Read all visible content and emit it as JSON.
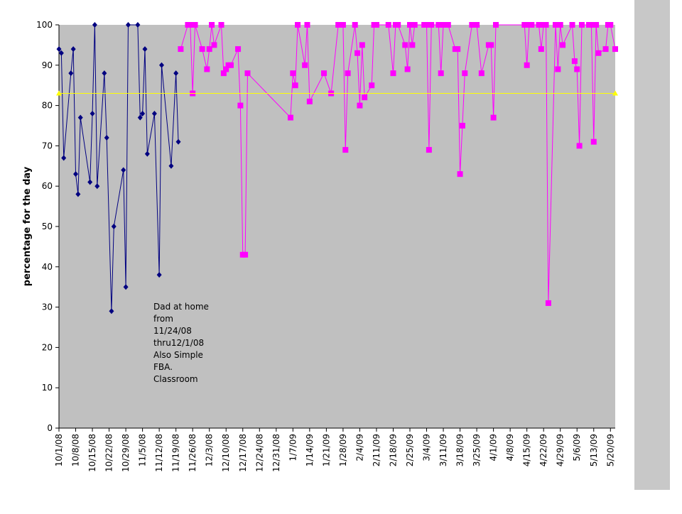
{
  "chart_data": {
    "type": "line",
    "y_label": "percentage for the day",
    "annotation": [
      "Dad at home",
      "from",
      "11/24/08",
      "thru12/1/08",
      "Also Simple",
      "FBA.",
      "Classroom"
    ],
    "xlim": [
      "2008-10-01",
      "2009-05-22"
    ],
    "ylim": [
      0,
      100
    ],
    "yticks": [
      0,
      10,
      20,
      30,
      40,
      50,
      60,
      70,
      80,
      90,
      100
    ],
    "xticks": [
      {
        "value": "2008-10-01",
        "label": "10/1/08"
      },
      {
        "value": "2008-10-08",
        "label": "10/8/08"
      },
      {
        "value": "2008-10-15",
        "label": "10/15/08"
      },
      {
        "value": "2008-10-22",
        "label": "10/22/08"
      },
      {
        "value": "2008-10-29",
        "label": "10/29/08"
      },
      {
        "value": "2008-11-05",
        "label": "11/5/08"
      },
      {
        "value": "2008-11-12",
        "label": "11/12/08"
      },
      {
        "value": "2008-11-19",
        "label": "11/19/08"
      },
      {
        "value": "2008-11-26",
        "label": "11/26/08"
      },
      {
        "value": "2008-12-03",
        "label": "12/3/08"
      },
      {
        "value": "2008-12-10",
        "label": "12/10/08"
      },
      {
        "value": "2008-12-17",
        "label": "12/17/08"
      },
      {
        "value": "2008-12-24",
        "label": "12/24/08"
      },
      {
        "value": "2008-12-31",
        "label": "12/31/08"
      },
      {
        "value": "2009-01-07",
        "label": "1/7/09"
      },
      {
        "value": "2009-01-14",
        "label": "1/14/09"
      },
      {
        "value": "2009-01-21",
        "label": "1/21/09"
      },
      {
        "value": "2009-01-28",
        "label": "1/28/09"
      },
      {
        "value": "2009-02-04",
        "label": "2/4/09"
      },
      {
        "value": "2009-02-11",
        "label": "2/11/09"
      },
      {
        "value": "2009-02-18",
        "label": "2/18/09"
      },
      {
        "value": "2009-02-25",
        "label": "2/25/09"
      },
      {
        "value": "2009-03-04",
        "label": "3/4/09"
      },
      {
        "value": "2009-03-11",
        "label": "3/11/09"
      },
      {
        "value": "2009-03-18",
        "label": "3/18/09"
      },
      {
        "value": "2009-03-25",
        "label": "3/25/09"
      },
      {
        "value": "2009-04-01",
        "label": "4/1/09"
      },
      {
        "value": "2009-04-08",
        "label": "4/8/09"
      },
      {
        "value": "2009-04-15",
        "label": "4/15/09"
      },
      {
        "value": "2009-04-22",
        "label": "4/22/09"
      },
      {
        "value": "2009-04-29",
        "label": "4/29/09"
      },
      {
        "value": "2009-05-06",
        "label": "5/6/09"
      },
      {
        "value": "2009-05-13",
        "label": "5/13/09"
      },
      {
        "value": "2009-05-20",
        "label": "5/20/09"
      }
    ],
    "series": [
      {
        "color": "#000080",
        "marker": "diamond",
        "x": [
          "2008-10-01",
          "2008-10-02",
          "2008-10-03",
          "2008-10-06",
          "2008-10-07",
          "2008-10-08",
          "2008-10-09",
          "2008-10-10",
          "2008-10-14",
          "2008-10-15",
          "2008-10-16",
          "2008-10-17",
          "2008-10-20",
          "2008-10-21",
          "2008-10-23",
          "2008-10-24",
          "2008-10-28",
          "2008-10-29",
          "2008-10-30",
          "2008-11-03",
          "2008-11-04",
          "2008-11-05",
          "2008-11-06",
          "2008-11-07",
          "2008-11-10",
          "2008-11-12",
          "2008-11-13",
          "2008-11-17",
          "2008-11-19",
          "2008-11-20"
        ],
        "values": [
          94,
          93,
          67,
          88,
          94,
          63,
          58,
          77,
          61,
          78,
          100,
          60,
          88,
          72,
          29,
          50,
          64,
          35,
          100,
          100,
          77,
          78,
          94,
          68,
          78,
          38,
          90,
          65,
          88,
          71
        ]
      },
      {
        "color": "#ff00ff",
        "marker": "square",
        "x": [
          "2008-11-21",
          "2008-11-24",
          "2008-11-25",
          "2008-11-26",
          "2008-11-27",
          "2008-11-30",
          "2008-12-02",
          "2008-12-03",
          "2008-12-04",
          "2008-12-05",
          "2008-12-08",
          "2008-12-09",
          "2008-12-10",
          "2008-12-11",
          "2008-12-12",
          "2008-12-15",
          "2008-12-16",
          "2008-12-17",
          "2008-12-18",
          "2008-12-19",
          "2009-01-06",
          "2009-01-07",
          "2009-01-08",
          "2009-01-09",
          "2009-01-12",
          "2009-01-13",
          "2009-01-14",
          "2009-01-20",
          "2009-01-23",
          "2009-01-26",
          "2009-01-27",
          "2009-01-28",
          "2009-01-29",
          "2009-01-30",
          "2009-02-02",
          "2009-02-03",
          "2009-02-04",
          "2009-02-05",
          "2009-02-06",
          "2009-02-09",
          "2009-02-10",
          "2009-02-11",
          "2009-02-16",
          "2009-02-18",
          "2009-02-19",
          "2009-02-20",
          "2009-02-23",
          "2009-02-24",
          "2009-02-25",
          "2009-02-26",
          "2009-02-27",
          "2009-03-03",
          "2009-03-04",
          "2009-03-05",
          "2009-03-06",
          "2009-03-09",
          "2009-03-10",
          "2009-03-11",
          "2009-03-12",
          "2009-03-13",
          "2009-03-16",
          "2009-03-17",
          "2009-03-18",
          "2009-03-19",
          "2009-03-20",
          "2009-03-23",
          "2009-03-24",
          "2009-03-25",
          "2009-03-27",
          "2009-03-30",
          "2009-03-31",
          "2009-04-01",
          "2009-04-02",
          "2009-04-14",
          "2009-04-15",
          "2009-04-16",
          "2009-04-17",
          "2009-04-20",
          "2009-04-21",
          "2009-04-22",
          "2009-04-23",
          "2009-04-24",
          "2009-04-27",
          "2009-04-28",
          "2009-04-29",
          "2009-04-30",
          "2009-05-04",
          "2009-05-05",
          "2009-05-06",
          "2009-05-07",
          "2009-05-08",
          "2009-05-11",
          "2009-05-12",
          "2009-05-13",
          "2009-05-14",
          "2009-05-15",
          "2009-05-18",
          "2009-05-19",
          "2009-05-20",
          "2009-05-22"
        ],
        "values": [
          94,
          100,
          100,
          83,
          100,
          94,
          89,
          94,
          100,
          95,
          100,
          88,
          89,
          90,
          90,
          94,
          80,
          43,
          43,
          88,
          77,
          88,
          85,
          100,
          90,
          100,
          81,
          88,
          83,
          100,
          100,
          100,
          69,
          88,
          100,
          93,
          80,
          95,
          82,
          85,
          100,
          100,
          100,
          88,
          100,
          100,
          95,
          89,
          100,
          95,
          100,
          100,
          100,
          69,
          100,
          100,
          88,
          100,
          100,
          100,
          94,
          94,
          63,
          75,
          88,
          100,
          100,
          100,
          88,
          95,
          95,
          77,
          100,
          100,
          90,
          100,
          100,
          100,
          94,
          100,
          100,
          31,
          100,
          89,
          100,
          95,
          100,
          91,
          89,
          70,
          100,
          100,
          100,
          71,
          100,
          93,
          94,
          100,
          100,
          94
        ]
      },
      {
        "color": "#ffff00",
        "marker": "triangle",
        "x": [
          "2008-10-01",
          "2009-05-22"
        ],
        "values": [
          83,
          83
        ]
      }
    ]
  }
}
